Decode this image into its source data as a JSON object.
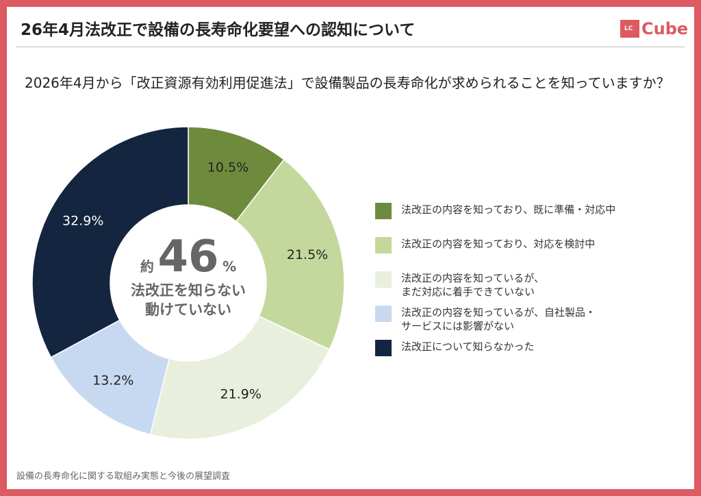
{
  "header": {
    "title": "26年4月法改正で設備の長寿命化要望への認知について",
    "logo_text": "Cube",
    "logo_badge": "LC"
  },
  "question": "2026年4月から「改正資源有効利用促進法」で設備製品の長寿命化が求められることを知っていますか？",
  "center": {
    "prefix": "約",
    "value": "46",
    "unit": "%",
    "line1": "法改正を知らない",
    "line2": "動けていない"
  },
  "footer": "設備の長寿命化に関する取組み実態と今後の展望調査",
  "chart_data": {
    "type": "pie",
    "donut": true,
    "legend_position": "right",
    "categories": [
      "法改正の内容を知っており、既に準備・対応中",
      "法改正の内容を知っており、対応を検討中",
      "法改正の内容を知っているが、まだ対応に着手できていない",
      "法改正の内容を知っているが、自社製品・サービスには影響がない",
      "法改正について知らなかった"
    ],
    "legend_lines": [
      [
        "法改正の内容を知っており、既に準備・対応中"
      ],
      [
        "法改正の内容を知っており、対応を検討中"
      ],
      [
        "法改正の内容を知っているが、",
        "まだ対応に着手できていない"
      ],
      [
        "法改正の内容を知っているが、自社製品・",
        "サービスには影響がない"
      ],
      [
        "法改正について知らなかった"
      ]
    ],
    "values": [
      10.5,
      21.5,
      21.9,
      13.2,
      32.9
    ],
    "labels": [
      "10.5%",
      "21.5%",
      "21.9%",
      "13.2%",
      "32.9%"
    ],
    "colors": [
      "#6e8b3d",
      "#c4d89d",
      "#e9efdd",
      "#c7d9f0",
      "#13253f"
    ]
  }
}
